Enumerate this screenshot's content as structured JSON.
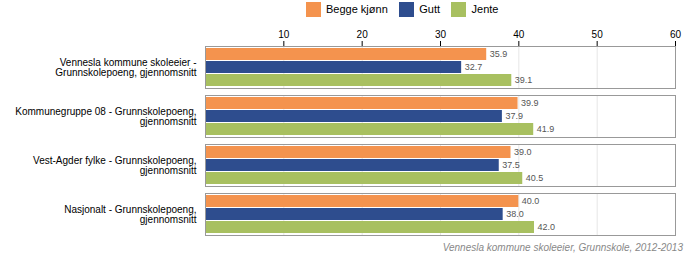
{
  "chart_data": {
    "type": "bar",
    "orientation": "horizontal",
    "categories": [
      "Vennesla kommune skoleeier -\nGrunnskolepoeng, gjennomsnitt",
      "Kommunegruppe 08 - Grunnskolepoeng,\ngjennomsnitt",
      "Vest-Agder fylke - Grunnskolepoeng,\ngjennomsnitt",
      "Nasjonalt - Grunnskolepoeng,\ngjennomsnitt"
    ],
    "series": [
      {
        "name": "Begge kjønn",
        "color": "#f4934e",
        "values": [
          35.9,
          39.9,
          39.0,
          40.0
        ]
      },
      {
        "name": "Gutt",
        "color": "#2e4d8e",
        "values": [
          32.7,
          37.9,
          37.5,
          38.0
        ]
      },
      {
        "name": "Jente",
        "color": "#a8c060",
        "values": [
          39.1,
          41.9,
          40.5,
          42.0
        ]
      }
    ],
    "xlim": [
      0,
      60
    ],
    "xticks": [
      10,
      20,
      30,
      40,
      50,
      60
    ],
    "grid": true,
    "data_labels": true,
    "legend": "top",
    "caption": "Vennesla kommune skoleeier, Grunnskole, 2012-2013"
  }
}
